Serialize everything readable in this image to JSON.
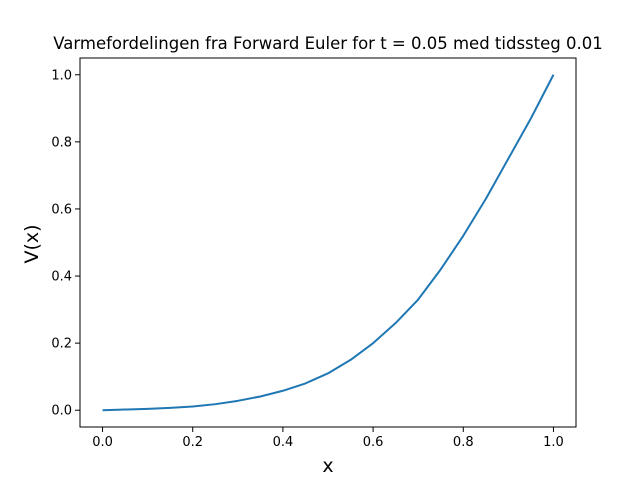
{
  "chart_data": {
    "type": "line",
    "title": "Varmefordelingen fra Forward Euler for t = 0.05 med tidssteg 0.01",
    "xlabel": "x",
    "ylabel": "V(x)",
    "xlim": [
      -0.05,
      1.05
    ],
    "ylim": [
      -0.05,
      1.05
    ],
    "xticks": [
      0.0,
      0.2,
      0.4,
      0.6,
      0.8,
      1.0
    ],
    "xtick_labels": [
      "0.0",
      "0.2",
      "0.4",
      "0.6",
      "0.8",
      "1.0"
    ],
    "yticks": [
      0.0,
      0.2,
      0.4,
      0.6,
      0.8,
      1.0
    ],
    "ytick_labels": [
      "0.0",
      "0.2",
      "0.4",
      "0.6",
      "0.8",
      "1.0"
    ],
    "grid": false,
    "legend": "none",
    "series": [
      {
        "color": "#1f77b4",
        "x": [
          0.0,
          0.05,
          0.1,
          0.15,
          0.2,
          0.25,
          0.3,
          0.35,
          0.4,
          0.45,
          0.5,
          0.55,
          0.6,
          0.65,
          0.7,
          0.75,
          0.8,
          0.85,
          0.9,
          0.95,
          1.0
        ],
        "y": [
          0.0,
          0.002,
          0.004,
          0.007,
          0.011,
          0.018,
          0.028,
          0.041,
          0.058,
          0.08,
          0.11,
          0.15,
          0.2,
          0.26,
          0.33,
          0.42,
          0.52,
          0.63,
          0.75,
          0.87,
          1.0
        ]
      }
    ]
  }
}
